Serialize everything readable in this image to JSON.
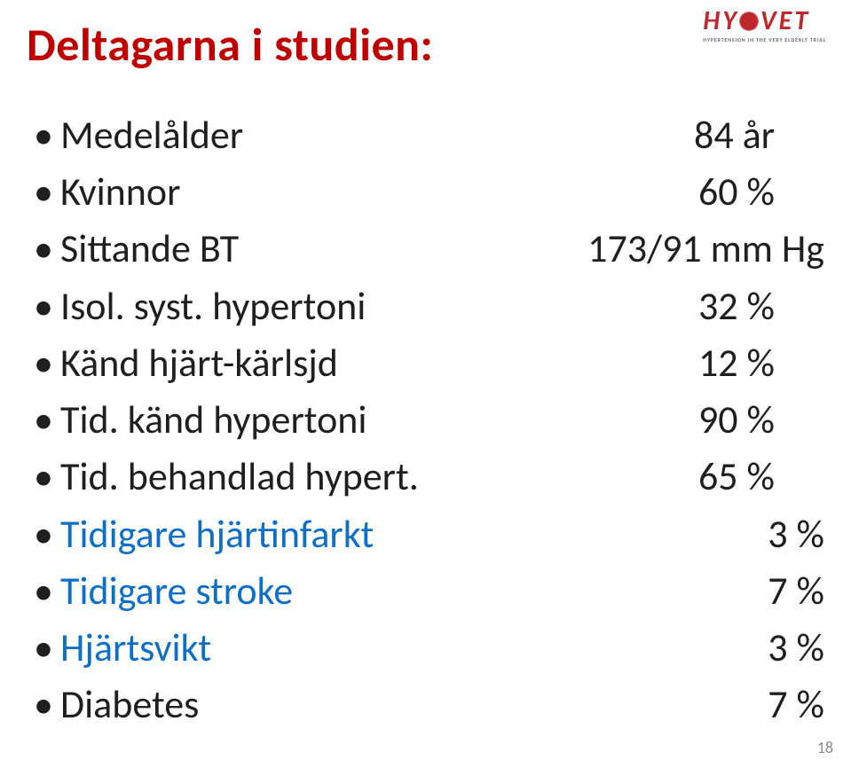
{
  "logo": {
    "text": "HYVET",
    "tagline": "HYPERTENSION IN THE VERY ELDERLY TRIAL"
  },
  "title": "Deltagarna i studien:",
  "items": [
    {
      "label": "Medelålder",
      "value": "84 år",
      "valueClass": "shift",
      "link": false
    },
    {
      "label": "Kvinnor",
      "value": "60 %",
      "valueClass": "shift",
      "link": false
    },
    {
      "label": "Sittande BT",
      "value": "173/91 mm Hg",
      "valueClass": "",
      "link": false
    },
    {
      "label": "Isol. syst. hypertoni",
      "value": "32 %",
      "valueClass": "shift",
      "link": false
    },
    {
      "label": "Känd hjärt-kärlsjd",
      "value": "12 %",
      "valueClass": "shift",
      "link": false
    },
    {
      "label": "Tid. känd hypertoni",
      "value": "90 %",
      "valueClass": "shift",
      "link": false
    },
    {
      "label": "Tid. behandlad hypert.",
      "value": "65 %",
      "valueClass": "shift",
      "link": false
    },
    {
      "label": "Tidigare hjärtinfarkt",
      "value": "3 %",
      "valueClass": "",
      "link": true
    },
    {
      "label": "Tidigare stroke",
      "value": "7 %",
      "valueClass": "",
      "link": true
    },
    {
      "label": "Hjärtsvikt",
      "value": "3 %",
      "valueClass": "",
      "link": true
    },
    {
      "label": "Diabetes",
      "value": "7 %",
      "valueClass": "",
      "link": false
    }
  ],
  "pageNumber": "18",
  "colors": {
    "titleColor": "#c00000",
    "logoColor": "#c0282d",
    "linkColor": "#0f6fc6",
    "textColor": "#1f1f1f",
    "background": "#ffffff"
  }
}
